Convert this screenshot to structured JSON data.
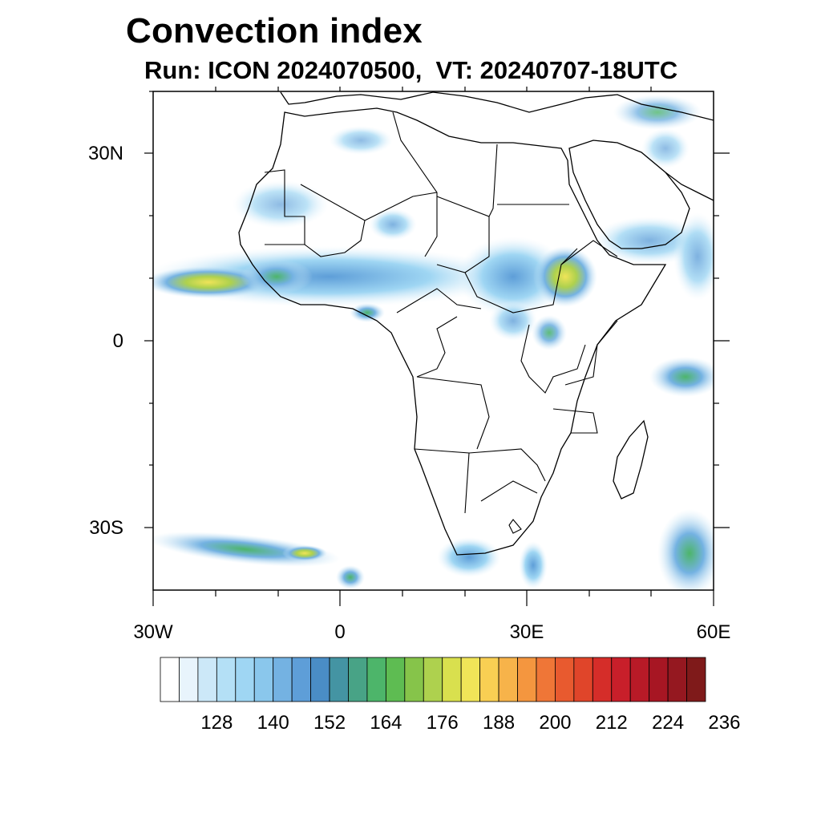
{
  "title": "Convection index",
  "subtitle": "Run: ICON 2024070500,  VT: 20240707-18UTC",
  "map": {
    "lon_range": [
      -30,
      60
    ],
    "lat_range": [
      -40,
      40
    ],
    "lat_ticks": [
      {
        "label": "30N",
        "lat": 30
      },
      {
        "label": "0",
        "lat": 0
      },
      {
        "label": "30S",
        "lat": -30
      }
    ],
    "lon_ticks": [
      {
        "label": "30W",
        "lon": -30
      },
      {
        "label": "0",
        "lon": 0
      },
      {
        "label": "30E",
        "lon": 30
      },
      {
        "label": "60E",
        "lon": 60
      }
    ]
  },
  "colorbar": {
    "colors": [
      "#ffffff",
      "#e8f4fc",
      "#cce8f8",
      "#b4e0f6",
      "#9fd6f3",
      "#8ac7ec",
      "#74b2e2",
      "#5e9ed8",
      "#4a8dc6",
      "#4494a3",
      "#48a386",
      "#4db56a",
      "#5ebc52",
      "#86c44a",
      "#aed14e",
      "#d9e04e",
      "#f0e458",
      "#f9cf53",
      "#f7b34a",
      "#f4963f",
      "#ef7637",
      "#e85a2f",
      "#e0452a",
      "#d52d29",
      "#c81f2a",
      "#b81a27",
      "#a71623",
      "#951820",
      "#7f1a1a"
    ],
    "labels": [
      "128",
      "140",
      "152",
      "164",
      "176",
      "188",
      "200",
      "212",
      "224",
      "236"
    ]
  }
}
